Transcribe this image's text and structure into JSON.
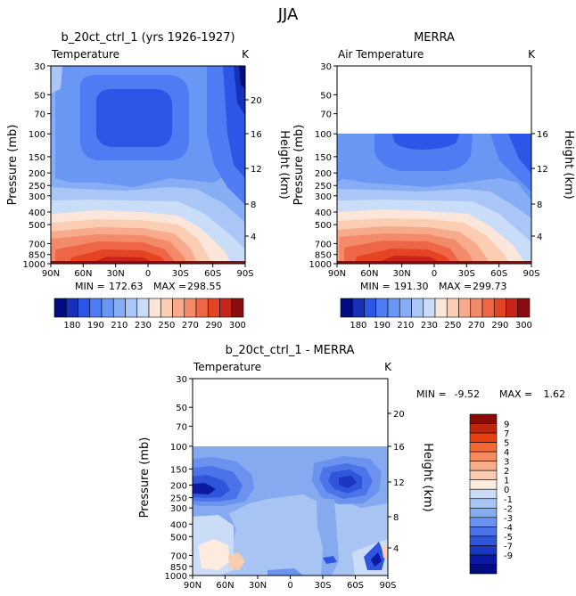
{
  "figure": {
    "title": "JJA",
    "diff_stats": {
      "min_label": "MIN =",
      "min_value": "-9.52",
      "max_label": "MAX =",
      "max_value": "1.62"
    }
  },
  "colors": {
    "abs_scale": [
      "#000c80",
      "#1630b8",
      "#2d55e6",
      "#4f7cf2",
      "#6a96f4",
      "#87aef5",
      "#a9c6f6",
      "#c9dcf8",
      "#fbe6d9",
      "#fbcdb3",
      "#f8ab8c",
      "#f38a6a",
      "#ee6646",
      "#e34523",
      "#c8251a",
      "#8a0c10"
    ],
    "diff_scale": [
      "#8a0a0a",
      "#c0260f",
      "#e94010",
      "#f06a38",
      "#f58c60",
      "#f7ad88",
      "#fbcdb0",
      "#fcebdf",
      "#cbdcf6",
      "#a7c4f3",
      "#86aaf0",
      "#6a92ee",
      "#4c74e8",
      "#2f55dd",
      "#1a36c2",
      "#0b1aa0",
      "#000d80"
    ]
  },
  "chart_data": [
    {
      "type": "heatmap",
      "subtitle": "b_20ct_ctrl_1 (yrs 1926-1927)",
      "left_label": "Temperature",
      "right_label": "K",
      "x": [
        "90N",
        "60N",
        "30N",
        "0",
        "30S",
        "60S",
        "90S"
      ],
      "y_pressure": [
        30,
        50,
        70,
        100,
        150,
        200,
        250,
        300,
        400,
        500,
        700,
        850,
        1000
      ],
      "y_height": [
        20,
        16,
        12,
        8,
        4
      ],
      "ylabel": "Pressure (mb)",
      "ylabel_right": "Height (km)",
      "stats": {
        "min_label": "MIN =",
        "min_value": "172.63",
        "max_label": "MAX =",
        "max_value": "298.55"
      },
      "colorbar_ticks": [
        "180",
        "190",
        "210",
        "230",
        "250",
        "270",
        "290",
        "300"
      ],
      "ylim_mb": [
        1000,
        30
      ],
      "data_top_mb": 30
    },
    {
      "type": "heatmap",
      "subtitle": "MERRA",
      "left_label": "Air Temperature",
      "right_label": "K",
      "x": [
        "90N",
        "60N",
        "30N",
        "0",
        "30S",
        "60S",
        "90S"
      ],
      "y_pressure": [
        30,
        50,
        70,
        100,
        150,
        200,
        250,
        300,
        400,
        500,
        700,
        850,
        1000
      ],
      "y_height": [
        16,
        12,
        8,
        4
      ],
      "ylabel": "Pressure (mb)",
      "ylabel_right": "Height (km)",
      "stats": {
        "min_label": "MIN =",
        "min_value": "191.30",
        "max_label": "MAX =",
        "max_value": "299.73"
      },
      "colorbar_ticks": [
        "180",
        "190",
        "210",
        "230",
        "250",
        "270",
        "290",
        "300"
      ],
      "ylim_mb": [
        1000,
        30
      ],
      "data_top_mb": 100
    },
    {
      "type": "heatmap",
      "subtitle": "b_20ct_ctrl_1 - MERRA",
      "left_label": "Temperature",
      "right_label": "K",
      "x": [
        "90N",
        "60N",
        "30N",
        "0",
        "30S",
        "60S",
        "90S"
      ],
      "y_pressure": [
        30,
        50,
        70,
        100,
        150,
        200,
        250,
        300,
        400,
        500,
        700,
        850,
        1000
      ],
      "y_height": [
        20,
        16,
        12,
        8,
        4
      ],
      "ylabel": "Pressure (mb)",
      "ylabel_right": "Height (km)",
      "colorbar_ticks": [
        "9",
        "7",
        "5",
        "4",
        "3",
        "2",
        "1",
        "0",
        "-1",
        "-2",
        "-3",
        "-4",
        "-5",
        "-7",
        "-9"
      ],
      "ylim_mb": [
        1000,
        30
      ],
      "data_top_mb": 100
    }
  ]
}
